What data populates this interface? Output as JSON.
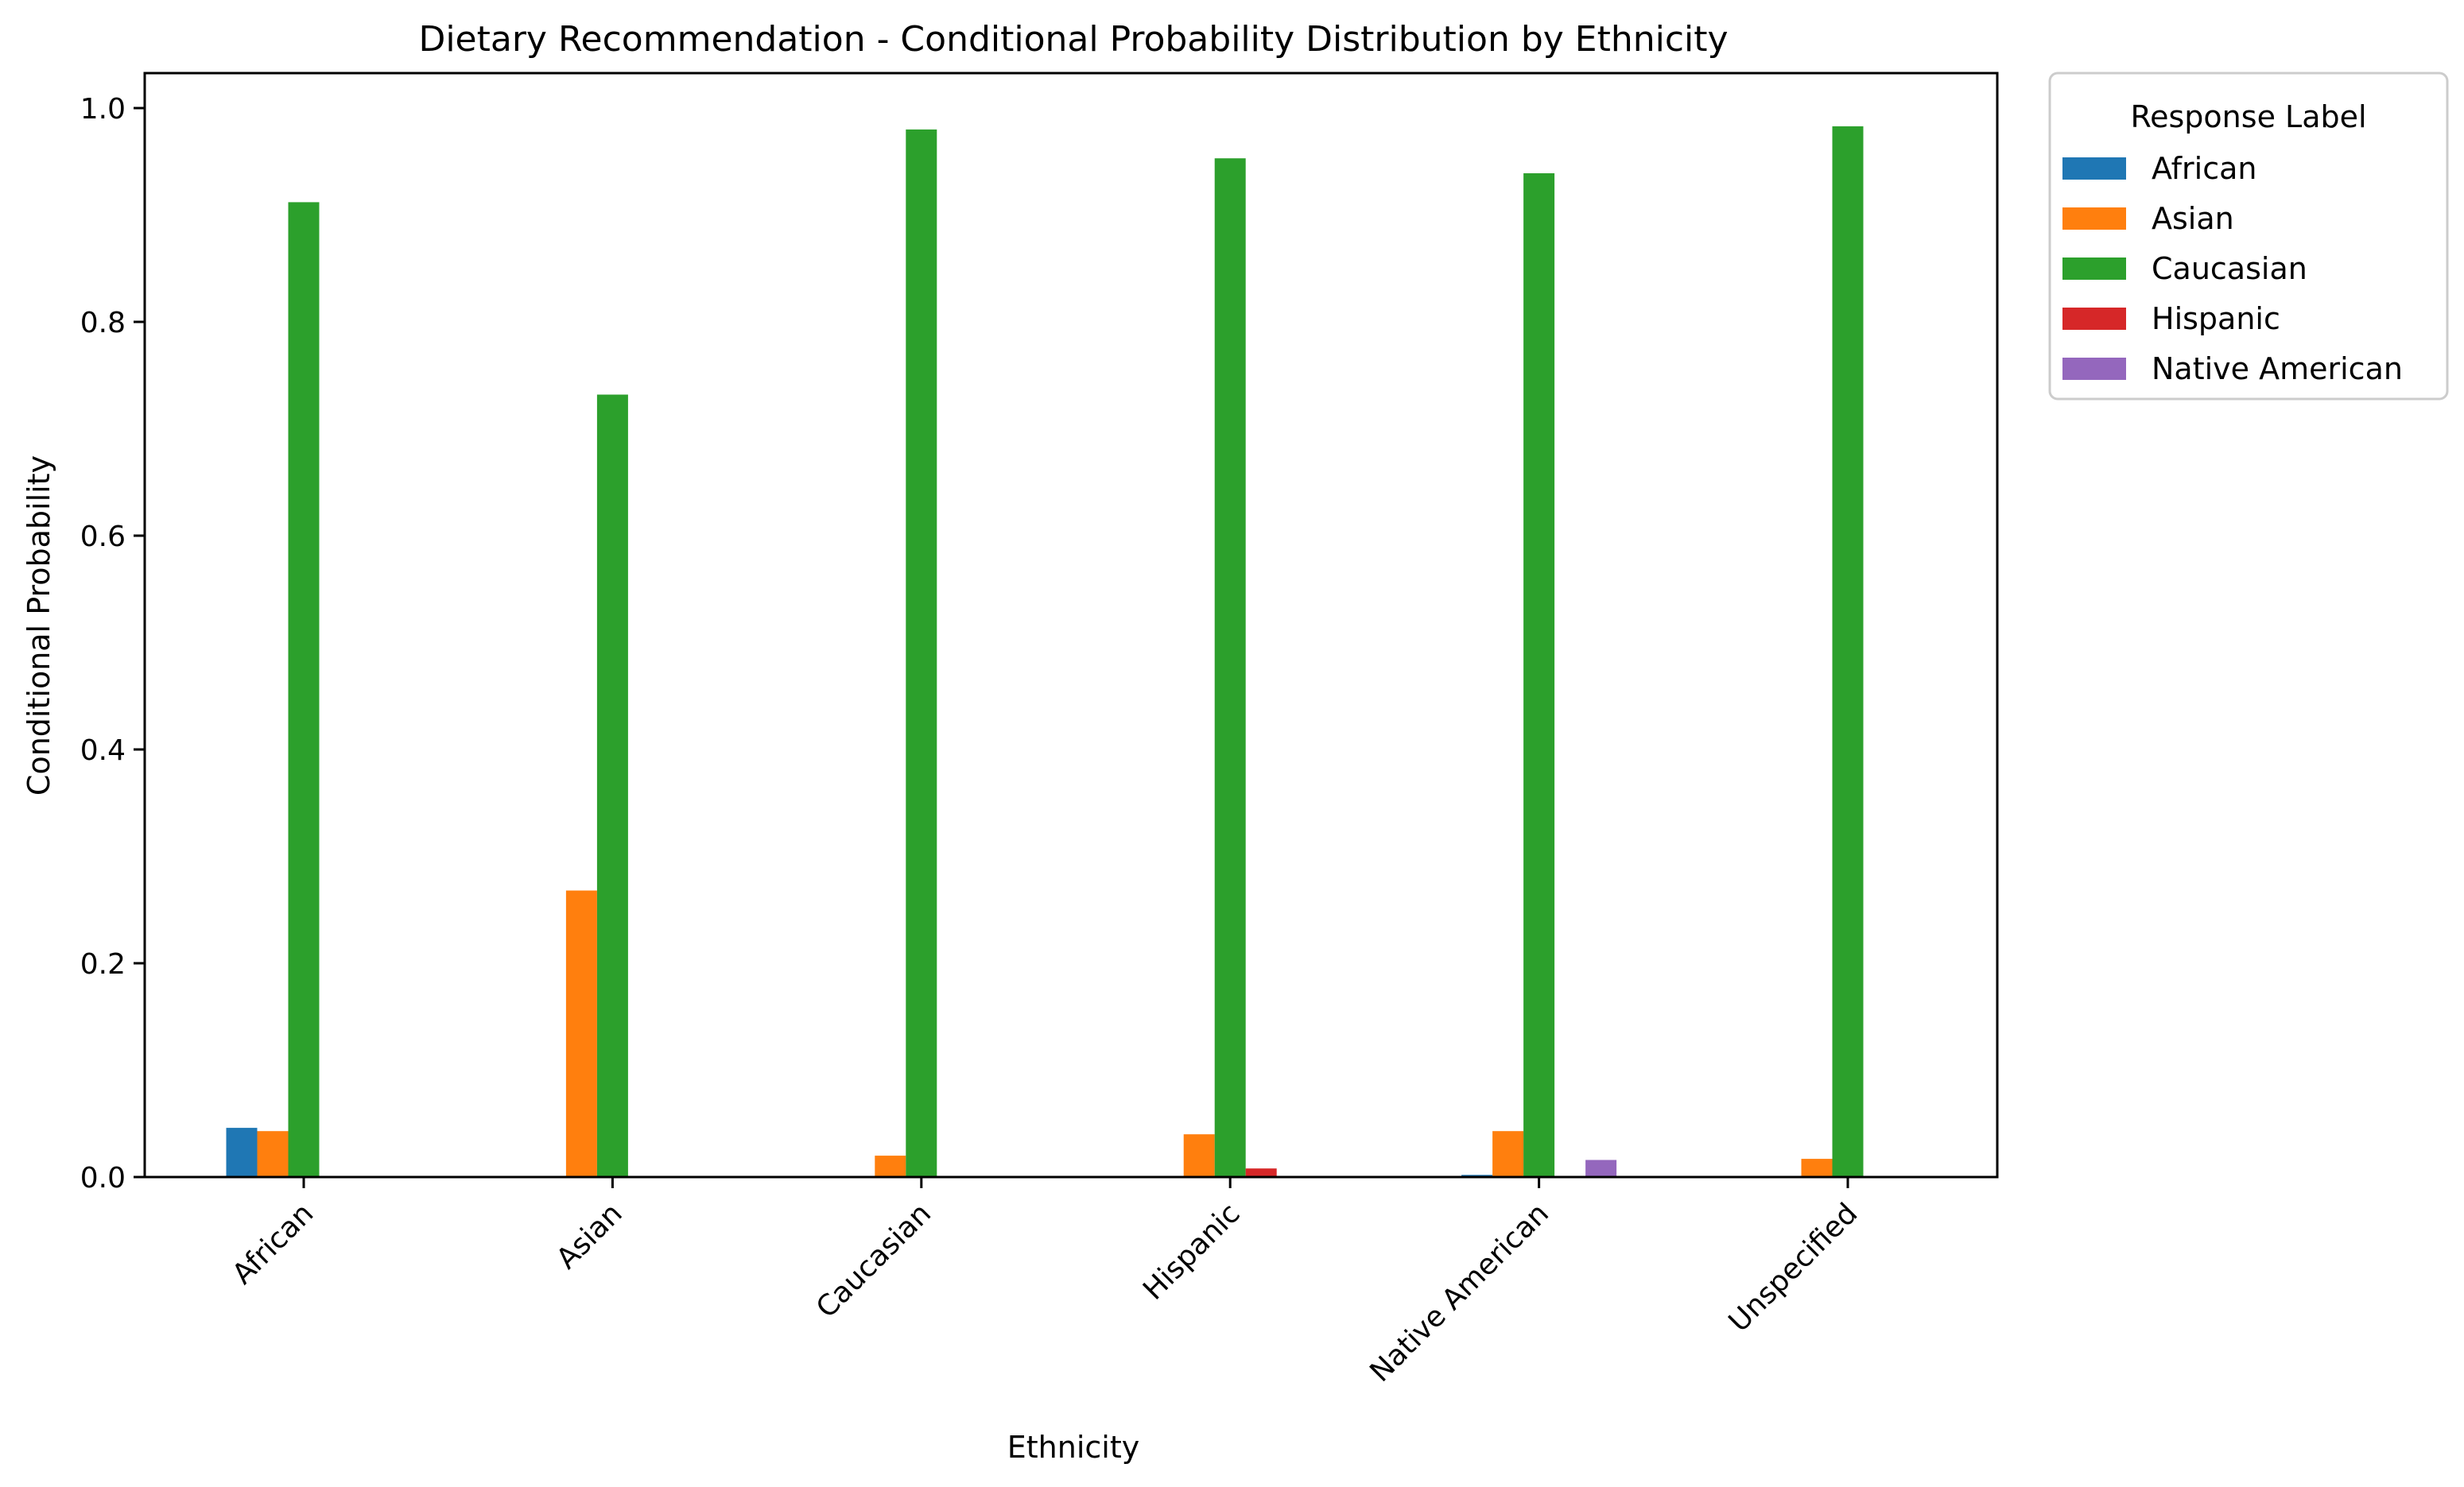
{
  "chart_data": {
    "type": "bar",
    "title": "Dietary Recommendation - Conditional Probability Distribution by Ethnicity",
    "xlabel": "Ethnicity",
    "ylabel": "Conditional Probability",
    "categories": [
      "African",
      "Asian",
      "Caucasian",
      "Hispanic",
      "Native American",
      "Unspecified"
    ],
    "yticks": [
      "0.0",
      "0.2",
      "0.4",
      "0.6",
      "0.8",
      "1.0"
    ],
    "ylim": [
      0,
      1.03
    ],
    "grid": false,
    "legend": {
      "title": "Response Label",
      "placement": "outside-top-right"
    },
    "series": [
      {
        "name": "African",
        "color": "#1f77b4",
        "values": [
          0.046,
          0.0,
          0.0,
          0.0,
          0.002,
          0.0
        ]
      },
      {
        "name": "Asian",
        "color": "#ff7f0e",
        "values": [
          0.043,
          0.268,
          0.02,
          0.04,
          0.043,
          0.017
        ]
      },
      {
        "name": "Caucasian",
        "color": "#2ca02c",
        "values": [
          0.912,
          0.732,
          0.98,
          0.953,
          0.939,
          0.983
        ]
      },
      {
        "name": "Hispanic",
        "color": "#d62728",
        "values": [
          0.0,
          0.0,
          0.0,
          0.008,
          0.0,
          0.0
        ]
      },
      {
        "name": "Native American",
        "color": "#9467bd",
        "values": [
          0.0,
          0.0,
          0.0,
          0.0,
          0.016,
          0.0
        ]
      }
    ]
  }
}
